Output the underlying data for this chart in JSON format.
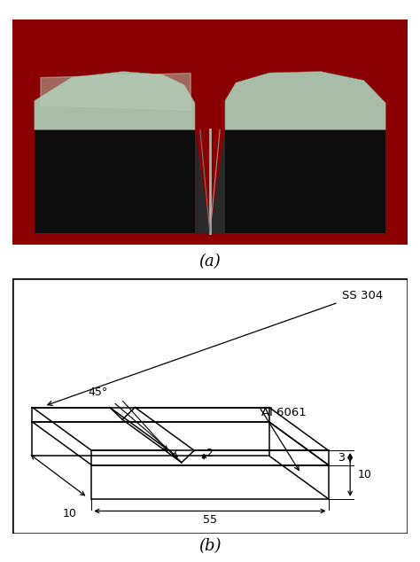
{
  "fig_width": 4.74,
  "fig_height": 6.34,
  "dpi": 100,
  "bg_color": "#ffffff",
  "label_a": "(a)",
  "label_b": "(b)",
  "dim_55": "55",
  "dim_10_bottom": "10",
  "dim_10_right": "10",
  "dim_3": "3",
  "dim_2": "2",
  "dim_45": "45°",
  "label_ss304": "SS 304",
  "label_al6061": "Al 6061"
}
